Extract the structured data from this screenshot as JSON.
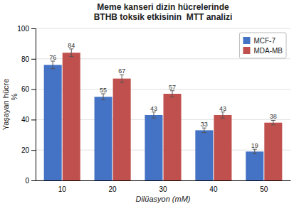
{
  "chart_data": {
    "type": "bar",
    "title": "Meme kanseri dizin hücrelerinde\nBTHB toksik etkisinin  MTT analizi",
    "xlabel": "Dilüasyon (mM)",
    "ylabel": "Yaşayan hücre\n       %",
    "categories": [
      "10",
      "20",
      "30",
      "40",
      "50"
    ],
    "series": [
      {
        "name": "MCF-7",
        "color": "#4472C4",
        "values": [
          76,
          55,
          43,
          33,
          19
        ],
        "errors": [
          2.5,
          2.0,
          2.0,
          1.5,
          1.5
        ]
      },
      {
        "name": "MDA-MB",
        "color": "#C0504D",
        "values": [
          84,
          67,
          57,
          43,
          38
        ],
        "errors": [
          2.5,
          2.5,
          2.0,
          2.0,
          1.5
        ]
      }
    ],
    "ylim": [
      0,
      100
    ],
    "yticks": [
      0,
      20,
      40,
      60,
      80,
      100
    ],
    "grid": true,
    "legend": "upper right",
    "data_labels": true
  }
}
